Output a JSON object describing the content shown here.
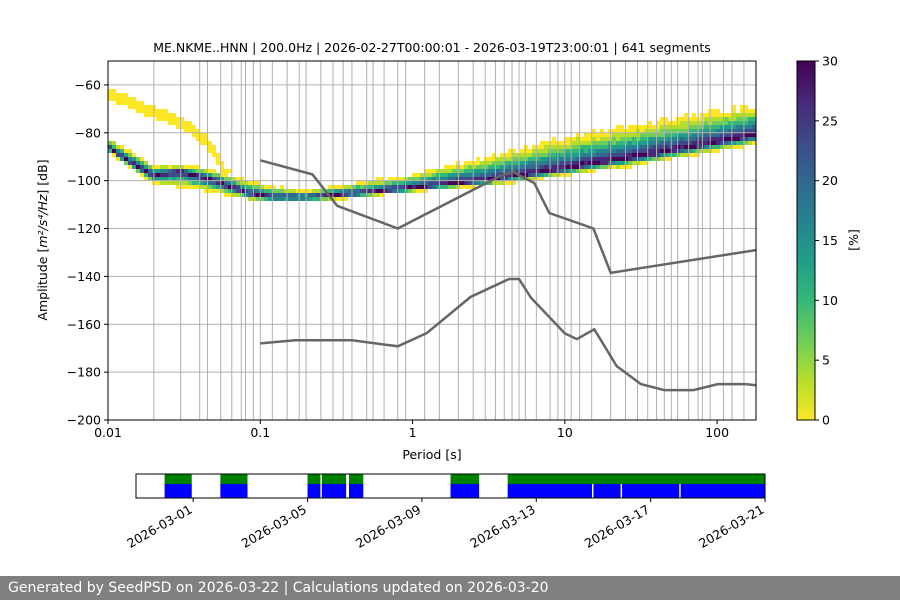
{
  "chart_data": [
    {
      "type": "heatmap",
      "title": "ME.NKME..HNN | 200.0Hz | 2026-02-27T00:00:01 - 2026-03-19T23:00:01 | 641 segments",
      "xlabel": "Period [s]",
      "ylabel_prefix": "Amplitude [",
      "ylabel_math": "m²/s⁴/Hz",
      "ylabel_suffix": "] [dB]",
      "x_scale": "log",
      "xlim": [
        0.01,
        180
      ],
      "ylim": [
        -200,
        -50
      ],
      "x_ticks": [
        {
          "value": 0.01,
          "label": "0.01"
        },
        {
          "value": 0.1,
          "label": "0.1"
        },
        {
          "value": 1,
          "label": "1"
        },
        {
          "value": 10,
          "label": "10"
        },
        {
          "value": 100,
          "label": "100"
        }
      ],
      "y_ticks": [
        {
          "value": -60,
          "label": "−60"
        },
        {
          "value": -80,
          "label": "−80"
        },
        {
          "value": -100,
          "label": "−100"
        },
        {
          "value": -120,
          "label": "−120"
        },
        {
          "value": -140,
          "label": "−140"
        },
        {
          "value": -160,
          "label": "−160"
        },
        {
          "value": -180,
          "label": "−180"
        },
        {
          "value": -200,
          "label": "−200"
        }
      ],
      "period_gridlines": [
        0.02,
        0.03,
        0.04,
        0.045,
        0.055,
        0.065,
        0.075,
        0.08,
        0.09,
        0.1,
        0.12,
        0.15,
        0.18,
        0.2,
        0.25,
        0.3,
        0.35,
        0.4,
        0.5,
        0.55,
        0.65,
        0.8,
        0.9,
        1.2,
        1.5,
        2,
        2.5,
        3,
        3.5,
        4,
        4.5,
        5,
        5.5,
        6.5,
        8,
        9,
        10,
        11,
        12.5,
        15,
        20,
        25,
        30,
        35,
        40,
        45,
        50,
        55,
        65,
        75,
        80,
        90,
        110,
        125,
        150
      ],
      "nhnm": {
        "name": "NHNM",
        "points": [
          [
            0.1,
            -91.5
          ],
          [
            0.22,
            -97.4
          ],
          [
            0.32,
            -110.5
          ],
          [
            0.8,
            -120
          ],
          [
            3.8,
            -97.9
          ],
          [
            4.6,
            -96.5
          ],
          [
            6.3,
            -101
          ],
          [
            7.9,
            -113.5
          ],
          [
            15.4,
            -120
          ],
          [
            20,
            -138.5
          ],
          [
            180,
            -129
          ]
        ]
      },
      "nlnm": {
        "name": "NLNM",
        "points": [
          [
            0.1,
            -168
          ],
          [
            0.17,
            -166.7
          ],
          [
            0.4,
            -166.7
          ],
          [
            0.8,
            -169.2
          ],
          [
            1.24,
            -163.7
          ],
          [
            2.4,
            -148.6
          ],
          [
            4.3,
            -141.1
          ],
          [
            5.0,
            -141.1
          ],
          [
            6.0,
            -149
          ],
          [
            10,
            -163.8
          ],
          [
            12,
            -166.2
          ],
          [
            15.6,
            -162.1
          ],
          [
            21.9,
            -177.5
          ],
          [
            31.6,
            -185
          ],
          [
            45,
            -187.5
          ],
          [
            70,
            -187.5
          ],
          [
            101,
            -185
          ],
          [
            154,
            -185
          ],
          [
            180,
            -185.5
          ]
        ]
      },
      "psd_distribution": {
        "mode_curve": [
          [
            0.01,
            -86
          ],
          [
            0.013,
            -91
          ],
          [
            0.02,
            -98
          ],
          [
            0.03,
            -96
          ],
          [
            0.05,
            -100
          ],
          [
            0.08,
            -105
          ],
          [
            0.12,
            -107
          ],
          [
            0.2,
            -107
          ],
          [
            0.5,
            -105
          ],
          [
            1,
            -103
          ],
          [
            3,
            -100
          ],
          [
            10,
            -95
          ],
          [
            30,
            -90
          ],
          [
            100,
            -84
          ],
          [
            180,
            -81
          ]
        ],
        "spread_above": [
          [
            0.01,
            -82
          ],
          [
            0.02,
            -93
          ],
          [
            0.04,
            -94
          ],
          [
            0.1,
            -101
          ],
          [
            0.2,
            -104
          ],
          [
            0.5,
            -100
          ],
          [
            1,
            -97
          ],
          [
            2,
            -92
          ],
          [
            5,
            -86
          ],
          [
            10,
            -81
          ],
          [
            30,
            -76
          ],
          [
            100,
            -70
          ],
          [
            180,
            -68
          ]
        ],
        "spread_below": [
          [
            0.01,
            -88
          ],
          [
            0.02,
            -102
          ],
          [
            0.04,
            -104
          ],
          [
            0.1,
            -109
          ],
          [
            0.2,
            -109
          ],
          [
            0.5,
            -107
          ],
          [
            1,
            -105
          ],
          [
            5,
            -101
          ],
          [
            10,
            -98
          ],
          [
            30,
            -94
          ],
          [
            100,
            -88
          ],
          [
            180,
            -85
          ]
        ],
        "outlier_band": [
          [
            0.01,
            -62
          ],
          [
            0.02,
            -70
          ],
          [
            0.03,
            -74
          ],
          [
            0.045,
            -82
          ],
          [
            0.06,
            -96
          ]
        ]
      },
      "colorbar": {
        "label": "[%]",
        "range": [
          0,
          30
        ],
        "ticks": [
          {
            "value": 0,
            "label": "0"
          },
          {
            "value": 5,
            "label": "5"
          },
          {
            "value": 10,
            "label": "10"
          },
          {
            "value": 15,
            "label": "15"
          },
          {
            "value": 20,
            "label": "20"
          },
          {
            "value": 25,
            "label": "25"
          },
          {
            "value": 30,
            "label": "30"
          }
        ],
        "colors": [
          "#fde725",
          "#b5de2b",
          "#6ece58",
          "#35b779",
          "#1f9e89",
          "#26828e",
          "#31688e",
          "#3e4989",
          "#482878",
          "#440154"
        ]
      }
    },
    {
      "type": "timeline",
      "x_start": "2026-02-27",
      "x_end": "2026-03-21",
      "ticks": [
        {
          "day": 2,
          "label": "2026-03-01"
        },
        {
          "day": 6,
          "label": "2026-03-05"
        },
        {
          "day": 10,
          "label": "2026-03-09"
        },
        {
          "day": 14,
          "label": "2026-03-13"
        },
        {
          "day": 18,
          "label": "2026-03-17"
        },
        {
          "day": 22,
          "label": "2026-03-21"
        }
      ],
      "data_color": "#0000ff",
      "used_color": "#008000",
      "data_ranges": [
        [
          1.0,
          1.95
        ],
        [
          2.95,
          3.9
        ],
        [
          6.0,
          6.45
        ],
        [
          6.5,
          7.35
        ],
        [
          7.45,
          7.95
        ],
        [
          11.0,
          12.0
        ],
        [
          13.0,
          15.95
        ],
        [
          16.0,
          16.95
        ],
        [
          17.0,
          19.0
        ],
        [
          19.05,
          22.0
        ]
      ],
      "used_ranges": [
        [
          1.0,
          1.95
        ],
        [
          2.95,
          3.9
        ],
        [
          6.0,
          6.45
        ],
        [
          6.5,
          7.35
        ],
        [
          7.45,
          7.95
        ],
        [
          11.0,
          12.0
        ],
        [
          13.0,
          22.0
        ]
      ]
    }
  ],
  "footer": {
    "text": "Generated by SeedPSD on 2026-03-22 | Calculations updated on 2026-03-20"
  }
}
